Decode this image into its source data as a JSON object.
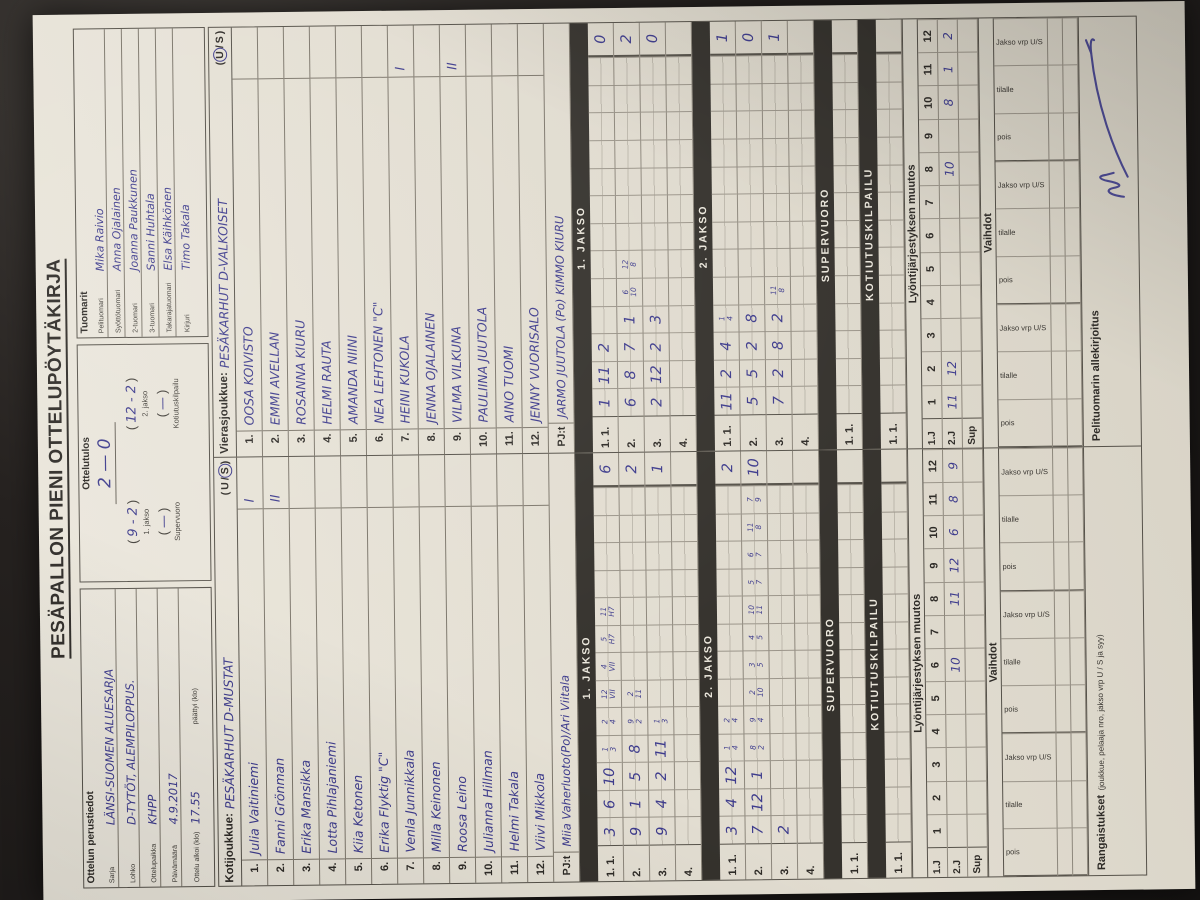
{
  "title": "PESÄPALLON PIENI OTTELUPÖYTÄKIRJA",
  "perustiedot": {
    "heading": "Ottelun perustiedot",
    "fields": [
      {
        "label": "Sarja",
        "value": "LÄNSI-SUOMEN ALUESARJA"
      },
      {
        "label": "Lohko",
        "value": "D-TYTÖT, ALEMPILOPPUS."
      },
      {
        "label": "Ottelupaikka",
        "value": "KHPP"
      },
      {
        "label": "Päivämäärä",
        "value": "4.9.2017"
      },
      {
        "label": "Ottelu alkoi (klo)",
        "value": "17.55",
        "label2": "päättyi (klo)",
        "value2": ""
      }
    ]
  },
  "ottelutulos": {
    "heading": "Ottelutulos",
    "score": "2 — 0",
    "jakso1": {
      "value": "9 - 2",
      "label": "1. jakso"
    },
    "jakso2": {
      "value": "12 - 2",
      "label": "2. jakso"
    },
    "supervuoro": {
      "value": "—",
      "label": "Supervuoro"
    },
    "kotiutuskilpailu": {
      "value": "—",
      "label": "Kotiutuskilpailu"
    }
  },
  "tuomarit": {
    "heading": "Tuomarit",
    "fields": [
      {
        "label": "Pelituomari",
        "value": "Mika Raivio"
      },
      {
        "label": "Syöttötuomari",
        "value": "Anna Ojalainen"
      },
      {
        "label": "2-tuomari",
        "value": "Joanna Paukkunen"
      },
      {
        "label": "3-tuomari",
        "value": "Sanni Huhtala"
      },
      {
        "label": "Takarajatuomari",
        "value": "Elsa Käihkönen"
      },
      {
        "label": "Kirjuri",
        "value": "Timo Takala"
      }
    ]
  },
  "bars": {
    "jakso1": "1. JAKSO",
    "jakso2": "2. JAKSO",
    "supervuoro": "SUPERVUORO",
    "kotiutuskilpailu": "KOTIUTUSKILPAILU"
  },
  "single_row_label": "1. 1.",
  "lyonti": {
    "heading": "Lyöntijärjestyksen muutos",
    "row1_label": "1.J",
    "row2_label": "2.J",
    "sup_label": "Sup",
    "cols": [
      "1",
      "2",
      "3",
      "4",
      "5",
      "6",
      "7",
      "8",
      "9",
      "10",
      "11",
      "12"
    ]
  },
  "vaihdot": {
    "heading": "Vaihdot",
    "group_labels": [
      "pois",
      "tilalle",
      "Jakso vrp U/S"
    ],
    "groups": 3
  },
  "rangaistukset": {
    "bold": "Rangaistukset",
    "rest": "(joukkue, pelaaja nro, jakso vrp U / S ja syy)"
  },
  "signature": {
    "label": "Pelituomarin allekirjoitus"
  },
  "home": {
    "header_label": "Kotijoukkue:",
    "team_name": "PESÄKARHUT D-MUSTAT",
    "us": {
      "u": "U",
      "s": "S",
      "circled": "S"
    },
    "players": [
      {
        "no": "1.",
        "name": "Julia Vaitiniemi",
        "mark": "I"
      },
      {
        "no": "2.",
        "name": "Fanni Grönman",
        "mark": "II"
      },
      {
        "no": "3.",
        "name": "Erika Mansikka",
        "mark": ""
      },
      {
        "no": "4.",
        "name": "Lotta Pihlajaniemi",
        "mark": ""
      },
      {
        "no": "5.",
        "name": "Kiia Ketonen",
        "mark": ""
      },
      {
        "no": "6.",
        "name": "Erika Flyktig  \"C\"",
        "mark": ""
      },
      {
        "no": "7.",
        "name": "Venla Junnikkala",
        "mark": ""
      },
      {
        "no": "8.",
        "name": "Milla Keinonen",
        "mark": ""
      },
      {
        "no": "9.",
        "name": "Roosa Leino",
        "mark": ""
      },
      {
        "no": "10.",
        "name": "Julianna Hillman",
        "mark": ""
      },
      {
        "no": "11.",
        "name": "Helmi Takala",
        "mark": ""
      },
      {
        "no": "12.",
        "name": "Viivi Mikkola",
        "mark": ""
      }
    ],
    "pj_label": "PJ:t",
    "pj": "Miia Vaherluoto(Po)/Ari Viitala",
    "jakso1_rows": [
      {
        "label": "1. 1.",
        "big": [
          "3",
          "6",
          "10"
        ],
        "small_top": [
          "1",
          "2",
          "12",
          "4",
          "5",
          "11"
        ],
        "small_bottom": [
          "3",
          "4",
          "VII",
          "VII",
          "H7",
          "H7"
        ],
        "total": "6"
      },
      {
        "label": "2.",
        "big": [
          "9",
          "1",
          "5",
          "8"
        ],
        "small_top": [
          "9",
          "2"
        ],
        "small_bottom": [
          "2",
          "11"
        ],
        "total": "2"
      },
      {
        "label": "3.",
        "big": [
          "9",
          "4",
          "2",
          "11"
        ],
        "small_top": [
          "1"
        ],
        "small_bottom": [
          "3"
        ],
        "total": "1"
      },
      {
        "label": "4."
      }
    ],
    "jakso2_rows": [
      {
        "label": "1. 1.",
        "big": [
          "3",
          "4",
          "12"
        ],
        "small_top": [
          "1",
          "2"
        ],
        "small_bottom": [
          "4",
          "4"
        ],
        "total": "2"
      },
      {
        "label": "2.",
        "big": [
          "7",
          "12",
          "1"
        ],
        "small_top": [
          "8",
          "9",
          "2",
          "3",
          "4",
          "10",
          "5",
          "6",
          "11",
          "7"
        ],
        "small_bottom": [
          "2",
          "4",
          "10",
          "5",
          "5",
          "11",
          "7",
          "7",
          "8",
          "9"
        ],
        "total": "10"
      },
      {
        "label": "3.",
        "big": [
          "2"
        ]
      },
      {
        "label": "4."
      }
    ],
    "lyonti_2j": [
      "",
      "",
      "",
      "",
      "",
      "10",
      "",
      "11",
      "12",
      "6",
      "8",
      "9"
    ]
  },
  "away": {
    "header_label": "Vierasjoukkue:",
    "team_name": "PESÄKARHUT D-VALKOISET",
    "us": {
      "u": "U",
      "s": "S",
      "circled": "U"
    },
    "players": [
      {
        "no": "1.",
        "name": "OOSA KOIVISTO",
        "mark": ""
      },
      {
        "no": "2.",
        "name": "EMMI AVELLAN",
        "mark": ""
      },
      {
        "no": "3.",
        "name": "ROSANNA KIURU",
        "mark": ""
      },
      {
        "no": "4.",
        "name": "HELMI RAUTA",
        "mark": ""
      },
      {
        "no": "5.",
        "name": "AMANDA NIINI",
        "mark": ""
      },
      {
        "no": "6.",
        "name": "NEA LEHTONEN  \"C\"",
        "mark": ""
      },
      {
        "no": "7.",
        "name": "HEINI KUKOLA",
        "mark": "I"
      },
      {
        "no": "8.",
        "name": "JENNA OJALAINEN",
        "mark": ""
      },
      {
        "no": "9.",
        "name": "VILMA VILKUNA",
        "mark": "II"
      },
      {
        "no": "10.",
        "name": "PAULIINA JUUTOLA",
        "mark": ""
      },
      {
        "no": "11.",
        "name": "AINO TUOMI",
        "mark": ""
      },
      {
        "no": "12.",
        "name": "JENNY VUORISALO",
        "mark": ""
      }
    ],
    "pj_label": "PJ:t",
    "pj": "JARMO JUUTOLA (Po) KIMMO KIURU",
    "jakso1_rows": [
      {
        "label": "1. 1.",
        "big": [
          "1",
          "11",
          "2"
        ],
        "total": "0"
      },
      {
        "label": "2.",
        "big": [
          "6",
          "8",
          "7",
          "1"
        ],
        "small_top": [
          "6",
          "12"
        ],
        "small_bottom": [
          "10",
          "8"
        ],
        "total": "2"
      },
      {
        "label": "3.",
        "big": [
          "2",
          "12",
          "2",
          "3"
        ],
        "total": "0"
      },
      {
        "label": "4."
      }
    ],
    "jakso2_rows": [
      {
        "label": "1. 1.",
        "big": [
          "11",
          "2",
          "4"
        ],
        "small_top": [
          "1"
        ],
        "small_bottom": [
          "4"
        ],
        "total": "1"
      },
      {
        "label": "2.",
        "big": [
          "5",
          "5",
          "2",
          "8"
        ],
        "total": "0"
      },
      {
        "label": "3.",
        "big": [
          "7",
          "2",
          "8",
          "2"
        ],
        "small_top": [
          "11"
        ],
        "small_bottom": [
          "8"
        ],
        "total": "1"
      },
      {
        "label": "4."
      }
    ],
    "lyonti_2j": [
      "11",
      "12",
      "",
      "",
      "",
      "",
      "",
      "10",
      "",
      "8",
      "1",
      "2"
    ]
  }
}
